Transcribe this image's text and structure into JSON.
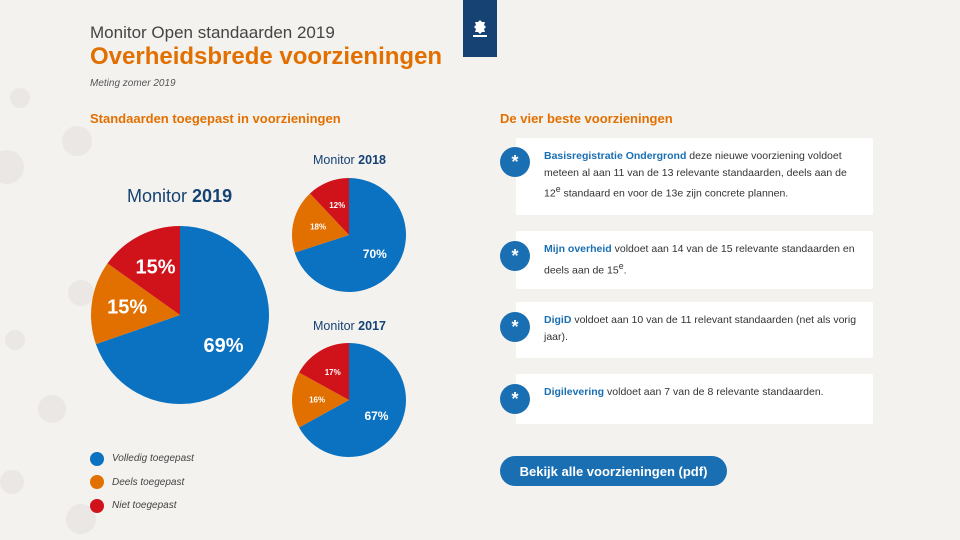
{
  "header": {
    "supertitle": "Monitor Open standaarden 2019",
    "title": "Overheidsbrede voorzieningen",
    "subtitle": "Meting zomer 2019"
  },
  "left_section_title": "Standaarden toegepast in voorzieningen",
  "right_section_title": "De vier beste voorzieningen",
  "colors": {
    "volledig": "#0b71c1",
    "deels": "#e17000",
    "niet": "#d0121b",
    "accent": "#e17000",
    "brand": "#154273"
  },
  "chart_data": [
    {
      "type": "pie",
      "title_prefix": "Monitor",
      "title_year": "2019",
      "categories": [
        "Volledig toegepast",
        "Deels toegepast",
        "Niet toegepast"
      ],
      "values": [
        69,
        15,
        15
      ],
      "labels": [
        "69%",
        "15%",
        "15%"
      ]
    },
    {
      "type": "pie",
      "title_prefix": "Monitor",
      "title_year": "2018",
      "categories": [
        "Volledig toegepast",
        "Deels toegepast",
        "Niet toegepast"
      ],
      "values": [
        70,
        18,
        12
      ],
      "labels": [
        "70%",
        "18%",
        "12%"
      ]
    },
    {
      "type": "pie",
      "title_prefix": "Monitor",
      "title_year": "2017",
      "categories": [
        "Volledig toegepast",
        "Deels toegepast",
        "Niet toegepast"
      ],
      "values": [
        67,
        16,
        17
      ],
      "labels": [
        "67%",
        "16%",
        "17%"
      ]
    }
  ],
  "legend": [
    {
      "label": "Volledig toegepast",
      "color": "#0b71c1"
    },
    {
      "label": "Deels toegepast",
      "color": "#e17000"
    },
    {
      "label": "Niet toegepast",
      "color": "#d0121b"
    }
  ],
  "cards": [
    {
      "icon": "*",
      "name": "Basisregistratie Ondergrond",
      "text": " deze nieuwe voorziening voldoet meteen al aan 11 van de 13 relevante standaarden, deels aan de 12",
      "sup": "e",
      "text2": " standaard en voor de 13e zijn concrete plannen."
    },
    {
      "icon": "*",
      "name": "Mijn overheid",
      "text": " voldoet aan 14 van de 15 relevante standaarden en deels aan de 15",
      "sup": "e",
      "text2": "."
    },
    {
      "icon": "*",
      "name": "DigiD",
      "text": " voldoet aan 10 van de 11 relevant standaarden (net als vorig jaar).",
      "sup": "",
      "text2": ""
    },
    {
      "icon": "*",
      "name": "Digilevering",
      "text": " voldoet aan 7 van de 8 relevante standaarden.",
      "sup": "",
      "text2": ""
    }
  ],
  "cta_label": "Bekijk alle voorzieningen (pdf)"
}
